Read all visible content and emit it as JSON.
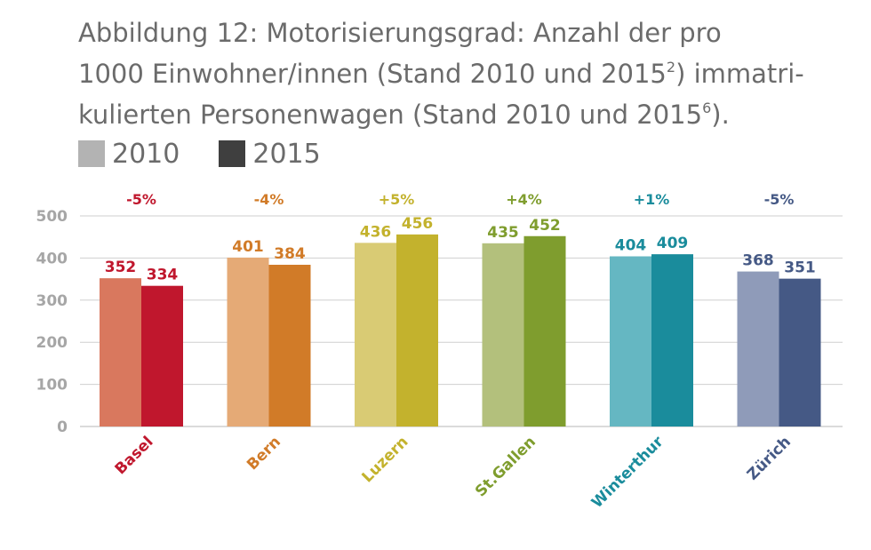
{
  "chart_data": {
    "type": "bar",
    "title_lines": [
      "Abbildung 12: Motorisierungsgrad: Anzahl der pro",
      "1000 Einwohner/innen (Stand 2010 und 2015",
      "kulierten Personenwagen (Stand 2010 und 2015"
    ],
    "title_line2_sup": "2",
    "title_line2_tail": ") immatri-",
    "title_line3_sup": "6",
    "title_line3_tail": ").",
    "categories": [
      "Basel",
      "Bern",
      "Luzern",
      "St.Gallen",
      "Winterthur",
      "Zürich"
    ],
    "series": [
      {
        "name": "2010",
        "values": [
          352,
          401,
          436,
          435,
          404,
          368
        ]
      },
      {
        "name": "2015",
        "values": [
          334,
          384,
          456,
          452,
          409,
          351
        ]
      }
    ],
    "changes": [
      "-5%",
      "-4%",
      "+5%",
      "+4%",
      "+1%",
      "-5%"
    ],
    "ylim": [
      0,
      500
    ],
    "yticks": [
      0,
      100,
      200,
      300,
      400,
      500
    ],
    "grid": true,
    "legend_position": "top-left",
    "colors": {
      "legend_2010": "#b3b3b3",
      "legend_2015": "#3f3f3f",
      "categories": [
        {
          "label": "#c0172d",
          "c2010": "#d9785e",
          "c2015": "#c0172d"
        },
        {
          "label": "#d17b28",
          "c2010": "#e5aa76",
          "c2015": "#d17b28"
        },
        {
          "label": "#c3b22d",
          "c2010": "#d9cb74",
          "c2015": "#c3b22d"
        },
        {
          "label": "#7f9d2e",
          "c2010": "#b3c07c",
          "c2015": "#7f9d2e"
        },
        {
          "label": "#1a8c9c",
          "c2010": "#65b7c2",
          "c2015": "#1a8c9c"
        },
        {
          "label": "#455985",
          "c2010": "#8f9bb9",
          "c2015": "#455985"
        }
      ],
      "axis_text": "#a6a6a6",
      "grid": "#cfcfcf",
      "title": "#6b6b6b"
    }
  }
}
